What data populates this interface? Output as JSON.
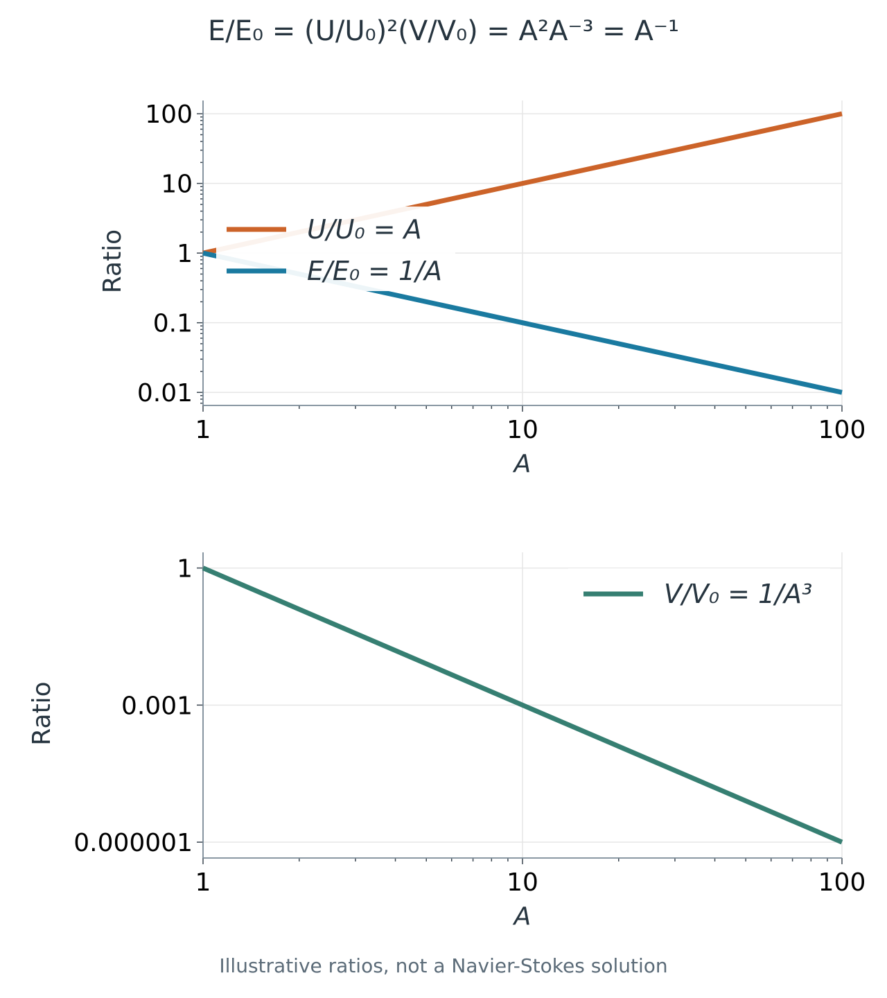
{
  "title": "E/E₀ = (U/U₀)²(V/V₀) = A²A⁻³ = A⁻¹",
  "footnote": "Illustrative ratios, not a Navier-Stokes solution",
  "chart_data": [
    {
      "type": "line",
      "xscale": "log",
      "yscale": "log",
      "xlim": [
        1,
        100
      ],
      "ylim": [
        0.0065,
        155
      ],
      "xlabel": "A",
      "ylabel": "Ratio",
      "x_ticks": [
        "1",
        "10",
        "100"
      ],
      "y_ticks": [
        "0.01",
        "0.1",
        "1",
        "10",
        "100"
      ],
      "grid": true,
      "legend_position": "center-left",
      "series": [
        {
          "name": "U/U₀ = A",
          "color": "#cc6329",
          "x": [
            1,
            100
          ],
          "y": [
            1,
            100
          ]
        },
        {
          "name": "E/E₀ = 1/A",
          "color": "#1a7aa0",
          "x": [
            1,
            100
          ],
          "y": [
            1,
            0.01
          ]
        }
      ]
    },
    {
      "type": "line",
      "xscale": "log",
      "yscale": "log",
      "xlim": [
        1,
        100
      ],
      "ylim": [
        4.5e-07,
        2.2
      ],
      "xlabel": "A",
      "ylabel": "Ratio",
      "x_ticks": [
        "1",
        "10",
        "100"
      ],
      "y_ticks": [
        "0.000001",
        "0.001",
        "1"
      ],
      "grid": true,
      "legend_position": "upper-right",
      "series": [
        {
          "name": "V/V₀ = 1/A³",
          "color": "#367f72",
          "x": [
            1,
            100
          ],
          "y": [
            1,
            1e-06
          ]
        }
      ]
    }
  ]
}
